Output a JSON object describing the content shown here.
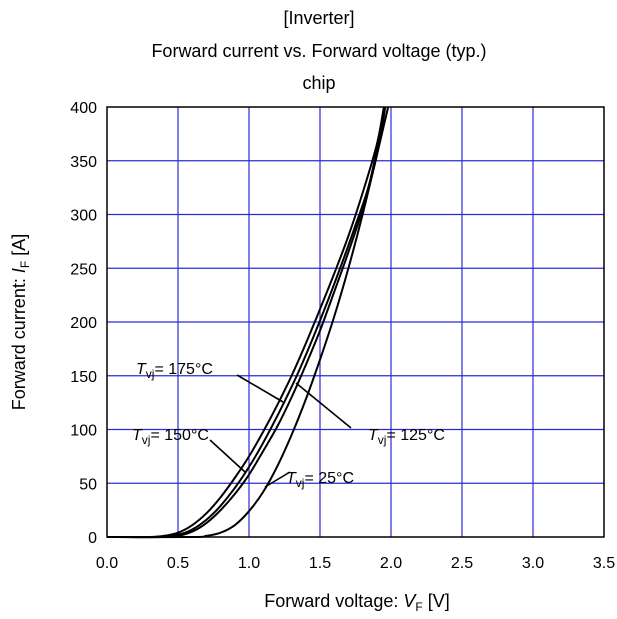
{
  "chart_data": {
    "type": "line",
    "title_lines": [
      "[Inverter]",
      "Forward current vs. Forward voltage (typ.)",
      "chip"
    ],
    "xlabel": {
      "prefix": "Forward voltage: ",
      "symbol": "V",
      "subscript": "F",
      "unit": " [V]"
    },
    "ylabel": {
      "prefix": "Forward current: ",
      "symbol": "I",
      "subscript": "F",
      "unit": " [A]"
    },
    "xlim": [
      0,
      3.5
    ],
    "ylim": [
      0,
      400
    ],
    "x_ticks": [
      "0.0",
      "0.5",
      "1.0",
      "1.5",
      "2.0",
      "2.5",
      "3.0",
      "3.5"
    ],
    "y_ticks": [
      "0",
      "50",
      "100",
      "150",
      "200",
      "250",
      "300",
      "350",
      "400"
    ],
    "grid": true,
    "series": [
      {
        "name": "Tvj = 175°C",
        "label": {
          "symbol": "T",
          "subscript": "vj",
          "text": "= 175°C"
        },
        "x": [
          0.0,
          0.3,
          0.4,
          0.5,
          0.6,
          0.7,
          0.8,
          0.9,
          1.0,
          1.1,
          1.2,
          1.3,
          1.4,
          1.5,
          1.6,
          1.7,
          1.8,
          1.9,
          1.95
        ],
        "y": [
          0,
          0,
          1,
          4,
          11,
          22,
          37,
          55,
          75,
          98,
          123,
          150,
          180,
          212,
          245,
          280,
          320,
          365,
          400
        ]
      },
      {
        "name": "Tvj = 150°C",
        "label": {
          "symbol": "T",
          "subscript": "vj",
          "text": "= 150°C"
        },
        "x": [
          0.0,
          0.35,
          0.45,
          0.55,
          0.65,
          0.75,
          0.85,
          0.95,
          1.05,
          1.15,
          1.25,
          1.35,
          1.45,
          1.55,
          1.65,
          1.75,
          1.85,
          1.95
        ],
        "y": [
          0,
          0,
          1,
          4,
          11,
          22,
          37,
          55,
          76,
          100,
          126,
          154,
          185,
          218,
          253,
          290,
          330,
          393
        ]
      },
      {
        "name": "Tvj = 125°C",
        "label": {
          "symbol": "T",
          "subscript": "vj",
          "text": "= 125°C"
        },
        "x": [
          0.0,
          0.4,
          0.5,
          0.6,
          0.7,
          0.8,
          0.9,
          1.0,
          1.1,
          1.2,
          1.3,
          1.4,
          1.5,
          1.6,
          1.7,
          1.8,
          1.9,
          1.96
        ],
        "y": [
          0,
          0,
          1,
          5,
          13,
          25,
          40,
          58,
          80,
          103,
          130,
          160,
          192,
          228,
          265,
          305,
          355,
          400
        ]
      },
      {
        "name": "Tvj = 25°C",
        "label": {
          "symbol": "T",
          "subscript": "vj",
          "text": "= 25°C"
        },
        "x": [
          0.0,
          0.6,
          0.7,
          0.8,
          0.9,
          1.0,
          1.1,
          1.2,
          1.3,
          1.4,
          1.5,
          1.6,
          1.7,
          1.8,
          1.9,
          1.98
        ],
        "y": [
          0,
          0,
          1,
          4,
          11,
          24,
          42,
          66,
          95,
          128,
          165,
          205,
          250,
          300,
          355,
          400
        ]
      }
    ]
  }
}
